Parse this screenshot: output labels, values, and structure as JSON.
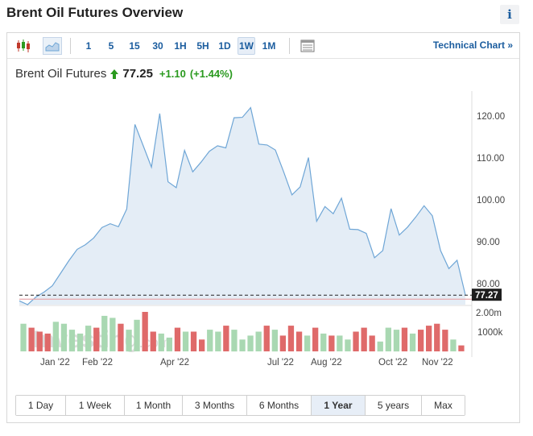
{
  "page": {
    "title": "Brent Oil Futures Overview",
    "info_icon": "i"
  },
  "toolbar": {
    "ranges": [
      {
        "label": "1",
        "active": false
      },
      {
        "label": "5",
        "active": false
      },
      {
        "label": "15",
        "active": false
      },
      {
        "label": "30",
        "active": false
      },
      {
        "label": "1H",
        "active": false
      },
      {
        "label": "5H",
        "active": false
      },
      {
        "label": "1D",
        "active": false
      },
      {
        "label": "1W",
        "active": true
      },
      {
        "label": "1M",
        "active": false
      }
    ],
    "technical_chart": "Technical Chart »",
    "icons": [
      "candlestick-icon",
      "area-chart-icon",
      "table-icon"
    ]
  },
  "quote": {
    "name": "Brent Oil Futures",
    "price": "77.25",
    "change": "+1.10",
    "change_pct": "(+1.44%)",
    "direction": "up",
    "up_color": "#2a9a1f"
  },
  "chart_data": {
    "type": "area",
    "x_tick_labels": [
      "Jan '22",
      "Feb '22",
      "Apr '22",
      "Jul '22",
      "Aug '22",
      "Oct '22",
      "Nov '22"
    ],
    "y_tick_labels": [
      "120.00",
      "110.00",
      "100.00",
      "90.00",
      "80.00"
    ],
    "ylim": [
      75,
      125
    ],
    "last_value_label": "77.27",
    "reference_line": 76.3,
    "series": [
      {
        "values": [
          75.9,
          75.0,
          76.8,
          78.0,
          79.5,
          82.5,
          85.5,
          88.2,
          89.3,
          90.9,
          93.4,
          94.3,
          93.6,
          97.8,
          118.0,
          112.9,
          107.8,
          120.6,
          104.3,
          102.9,
          111.8,
          106.7,
          109.0,
          111.6,
          112.9,
          112.4,
          119.6,
          119.7,
          122.0,
          113.3,
          113.1,
          111.9,
          106.7,
          101.2,
          103.1,
          110.1,
          94.9,
          98.4,
          96.7,
          100.4,
          93.0,
          92.9,
          92.0,
          86.2,
          87.9,
          97.9,
          91.6,
          93.5,
          95.9,
          98.6,
          96.2,
          87.9,
          83.6,
          85.6,
          77.3
        ]
      },
      {
        "name": "Volume",
        "volume_labels": [
          "2.00m",
          "1000k"
        ],
        "bars": [
          {
            "v": 1.4,
            "d": "up"
          },
          {
            "v": 1.2,
            "d": "down"
          },
          {
            "v": 1.0,
            "d": "down"
          },
          {
            "v": 0.9,
            "d": "down"
          },
          {
            "v": 1.5,
            "d": "up"
          },
          {
            "v": 1.4,
            "d": "up"
          },
          {
            "v": 1.1,
            "d": "up"
          },
          {
            "v": 0.9,
            "d": "up"
          },
          {
            "v": 1.3,
            "d": "up"
          },
          {
            "v": 1.2,
            "d": "down"
          },
          {
            "v": 1.8,
            "d": "up"
          },
          {
            "v": 1.7,
            "d": "up"
          },
          {
            "v": 1.4,
            "d": "down"
          },
          {
            "v": 1.1,
            "d": "up"
          },
          {
            "v": 1.6,
            "d": "up"
          },
          {
            "v": 2.0,
            "d": "down"
          },
          {
            "v": 1.0,
            "d": "down"
          },
          {
            "v": 0.9,
            "d": "up"
          },
          {
            "v": 0.7,
            "d": "up"
          },
          {
            "v": 1.2,
            "d": "down"
          },
          {
            "v": 1.0,
            "d": "up"
          },
          {
            "v": 1.0,
            "d": "down"
          },
          {
            "v": 0.6,
            "d": "down"
          },
          {
            "v": 1.1,
            "d": "up"
          },
          {
            "v": 1.0,
            "d": "up"
          },
          {
            "v": 1.3,
            "d": "down"
          },
          {
            "v": 1.1,
            "d": "up"
          },
          {
            "v": 0.6,
            "d": "up"
          },
          {
            "v": 0.8,
            "d": "up"
          },
          {
            "v": 1.0,
            "d": "up"
          },
          {
            "v": 1.3,
            "d": "down"
          },
          {
            "v": 1.1,
            "d": "up"
          },
          {
            "v": 0.8,
            "d": "down"
          },
          {
            "v": 1.3,
            "d": "down"
          },
          {
            "v": 1.0,
            "d": "down"
          },
          {
            "v": 0.8,
            "d": "up"
          },
          {
            "v": 1.2,
            "d": "down"
          },
          {
            "v": 0.9,
            "d": "up"
          },
          {
            "v": 0.8,
            "d": "down"
          },
          {
            "v": 0.8,
            "d": "up"
          },
          {
            "v": 0.6,
            "d": "up"
          },
          {
            "v": 1.0,
            "d": "down"
          },
          {
            "v": 1.2,
            "d": "down"
          },
          {
            "v": 0.8,
            "d": "down"
          },
          {
            "v": 0.5,
            "d": "up"
          },
          {
            "v": 1.2,
            "d": "up"
          },
          {
            "v": 1.1,
            "d": "up"
          },
          {
            "v": 1.2,
            "d": "down"
          },
          {
            "v": 0.9,
            "d": "up"
          },
          {
            "v": 1.1,
            "d": "down"
          },
          {
            "v": 1.3,
            "d": "down"
          },
          {
            "v": 1.4,
            "d": "down"
          },
          {
            "v": 1.1,
            "d": "down"
          },
          {
            "v": 0.6,
            "d": "up"
          },
          {
            "v": 0.3,
            "d": "down"
          }
        ],
        "ylim": [
          0,
          2.0
        ]
      }
    ],
    "colors": {
      "line": "#6fa6d6",
      "fill": "#e4edf6",
      "volume_up": "#a9d8b2",
      "volume_down": "#df6a6a",
      "reference_line": "#e9a8ad",
      "last_value_bg": "#1e1e1e"
    },
    "watermark": {
      "prefix": "Investing",
      "suffix": ".com"
    },
    "grid": false
  },
  "periods": [
    {
      "label": "1 Day",
      "active": false
    },
    {
      "label": "1 Week",
      "active": false
    },
    {
      "label": "1 Month",
      "active": false
    },
    {
      "label": "3 Months",
      "active": false
    },
    {
      "label": "6 Months",
      "active": false
    },
    {
      "label": "1 Year",
      "active": true
    },
    {
      "label": "5 years",
      "active": false
    },
    {
      "label": "Max",
      "active": false
    }
  ]
}
